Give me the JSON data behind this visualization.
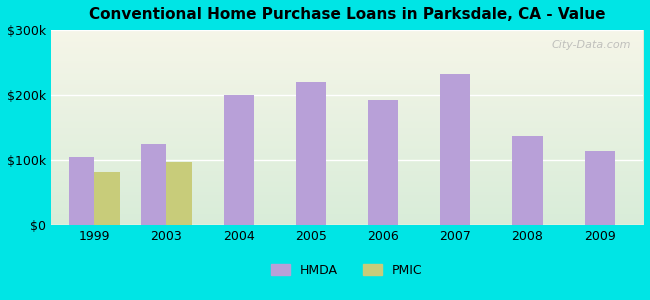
{
  "title": "Conventional Home Purchase Loans in Parksdale, CA - Value",
  "years": [
    "1999",
    "2003",
    "2004",
    "2005",
    "2006",
    "2007",
    "2008",
    "2009"
  ],
  "hmda_values": [
    105000,
    125000,
    200000,
    220000,
    193000,
    233000,
    137000,
    115000
  ],
  "pmic_values": [
    82000,
    97000,
    null,
    null,
    null,
    null,
    null,
    null
  ],
  "hmda_color": "#b8a0d8",
  "pmic_color": "#c8cc7a",
  "bg_color": "#00e5e5",
  "plot_bg_top": "#f5f5e8",
  "plot_bg_bottom": "#d8ecd8",
  "ylim": [
    0,
    300000
  ],
  "yticks": [
    0,
    100000,
    200000,
    300000
  ],
  "ytick_labels": [
    "$0",
    "$100k",
    "$200k",
    "$300k"
  ],
  "bar_width": 0.35,
  "watermark": "City-Data.com"
}
